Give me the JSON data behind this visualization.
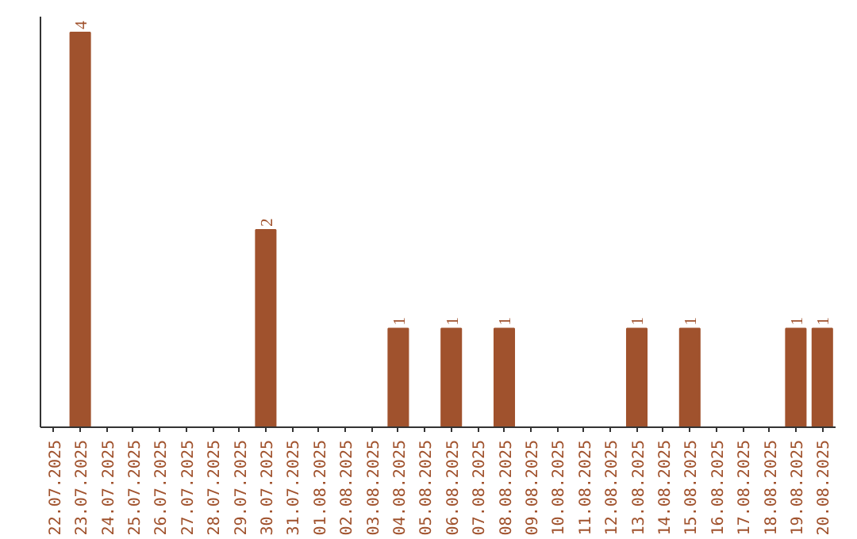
{
  "chart_data": {
    "type": "bar",
    "categories": [
      "22.07.2025",
      "23.07.2025",
      "24.07.2025",
      "25.07.2025",
      "26.07.2025",
      "27.07.2025",
      "28.07.2025",
      "29.07.2025",
      "30.07.2025",
      "31.07.2025",
      "01.08.2025",
      "02.08.2025",
      "03.08.2025",
      "04.08.2025",
      "05.08.2025",
      "06.08.2025",
      "07.08.2025",
      "08.08.2025",
      "09.08.2025",
      "10.08.2025",
      "11.08.2025",
      "12.08.2025",
      "13.08.2025",
      "14.08.2025",
      "15.08.2025",
      "16.08.2025",
      "17.08.2025",
      "18.08.2025",
      "19.08.2025",
      "20.08.2025"
    ],
    "values": [
      0,
      4,
      0,
      0,
      0,
      0,
      0,
      0,
      2,
      0,
      0,
      0,
      0,
      1,
      0,
      1,
      0,
      1,
      0,
      0,
      0,
      0,
      1,
      0,
      1,
      0,
      0,
      0,
      1,
      1
    ],
    "value_labels": [
      null,
      "4",
      null,
      null,
      null,
      null,
      null,
      null,
      "2",
      null,
      null,
      null,
      null,
      "1",
      null,
      "1",
      null,
      "1",
      null,
      null,
      null,
      null,
      "1",
      null,
      "1",
      null,
      null,
      null,
      "1",
      "1"
    ],
    "color": "#a0522d",
    "tick_labels": "x",
    "grid": false
  }
}
